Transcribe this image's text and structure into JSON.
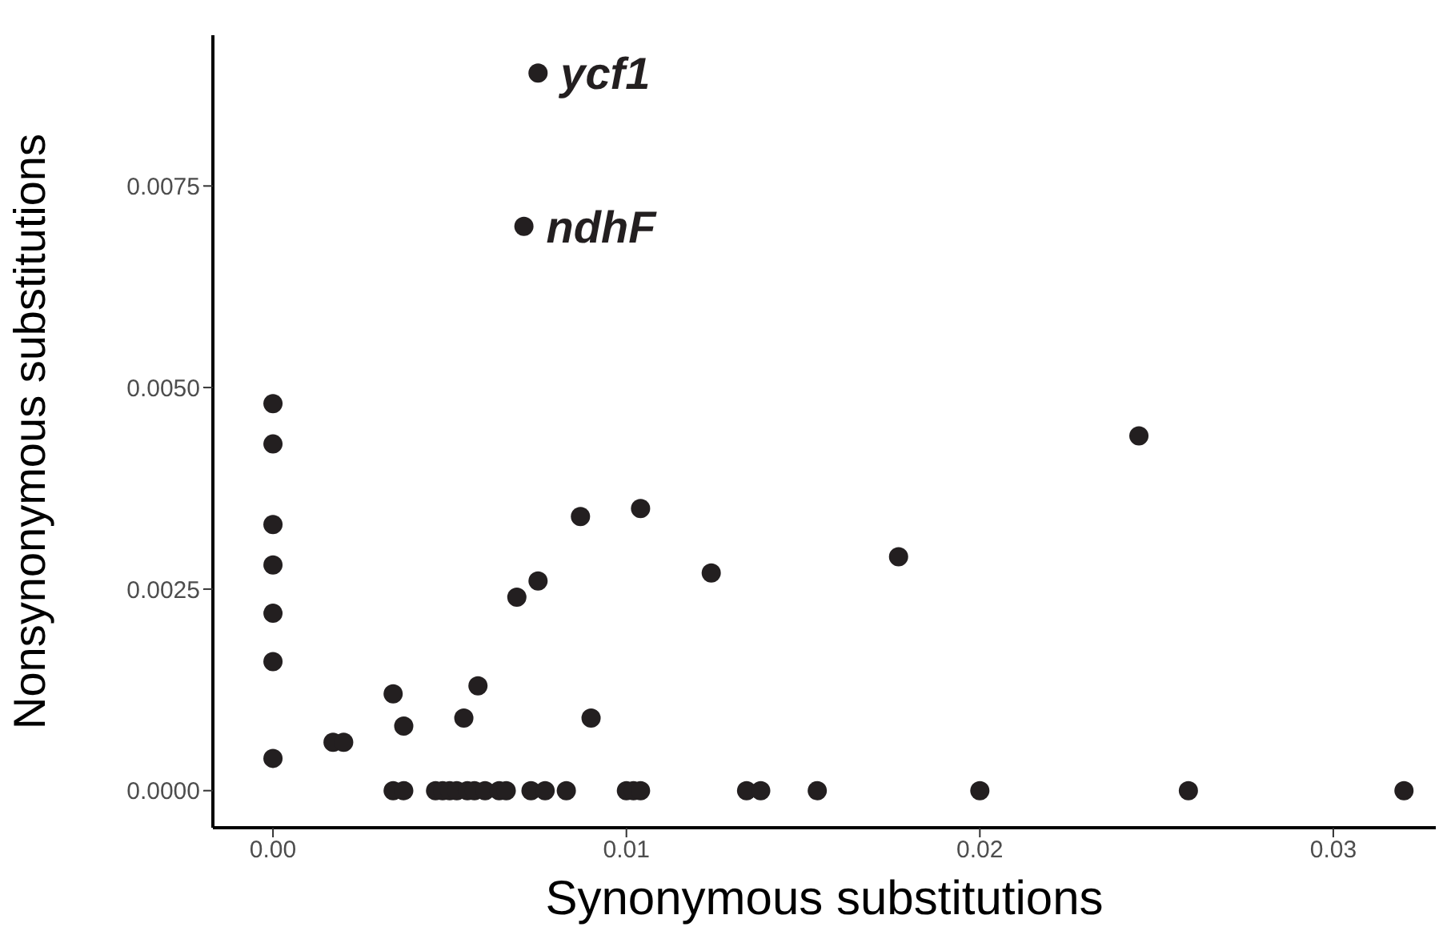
{
  "chart_data": {
    "type": "scatter",
    "xlabel": "Synonymous substitutions",
    "ylabel": "Nonsynonymous substitutions",
    "xlim": [
      -0.0017,
      0.0329
    ],
    "ylim": [
      -0.00046,
      0.00937
    ],
    "xticks": [
      {
        "value": 0,
        "label": "0.00"
      },
      {
        "value": 0.01,
        "label": "0.01"
      },
      {
        "value": 0.02,
        "label": "0.02"
      },
      {
        "value": 0.03,
        "label": "0.03"
      }
    ],
    "yticks": [
      {
        "value": 0,
        "label": "0.0000"
      },
      {
        "value": 0.0025,
        "label": "0.0025"
      },
      {
        "value": 0.005,
        "label": "0.0050"
      },
      {
        "value": 0.0075,
        "label": "0.0075"
      }
    ],
    "grid": false,
    "marker": "circle",
    "legend": false,
    "series": [
      {
        "color": "#231f20",
        "x": [
          0,
          0,
          0,
          0,
          0,
          0,
          0,
          0.0017,
          0.002,
          0.0034,
          0.0037,
          0.0054,
          0.0058,
          0.009,
          0.0069,
          0.0075,
          0.0087,
          0.0104,
          0.0124,
          0.0177,
          0.0245,
          0.0075,
          0.0071,
          0.0034,
          0.0037,
          0.0046,
          0.0048,
          0.005,
          0.0052,
          0.0055,
          0.0057,
          0.006,
          0.0064,
          0.0066,
          0.0073,
          0.0077,
          0.0083,
          0.01,
          0.0102,
          0.0104,
          0.0134,
          0.0138,
          0.0154,
          0.02,
          0.0259,
          0.032
        ],
        "values": [
          0.0048,
          0.0043,
          0.0033,
          0.0028,
          0.0022,
          0.0016,
          0.0004,
          0.0006,
          0.0006,
          0.0012,
          0.0008,
          0.0009,
          0.0013,
          0.0009,
          0.0024,
          0.0026,
          0.0034,
          0.0035,
          0.0027,
          0.0029,
          0.0044,
          0.0089,
          0.007,
          0,
          0,
          0,
          0,
          0,
          0,
          0,
          0,
          0,
          0,
          0,
          0,
          0,
          0,
          0,
          0,
          0,
          0,
          0,
          0,
          0,
          0,
          0
        ]
      }
    ],
    "annotations": [
      {
        "text": "ycf1",
        "x": 0.0075,
        "y": 0.0089
      },
      {
        "text": "ndhF",
        "x": 0.0071,
        "y": 0.007
      }
    ]
  }
}
